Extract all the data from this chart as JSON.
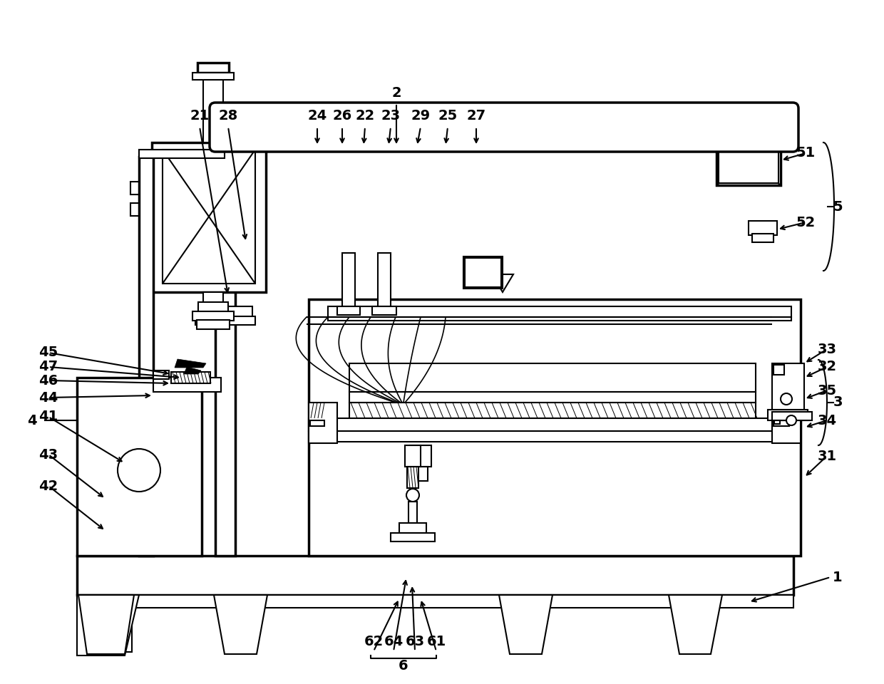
{
  "bg_color": "#ffffff",
  "lc": "#000000",
  "lw": 1.5,
  "blw": 2.5
}
